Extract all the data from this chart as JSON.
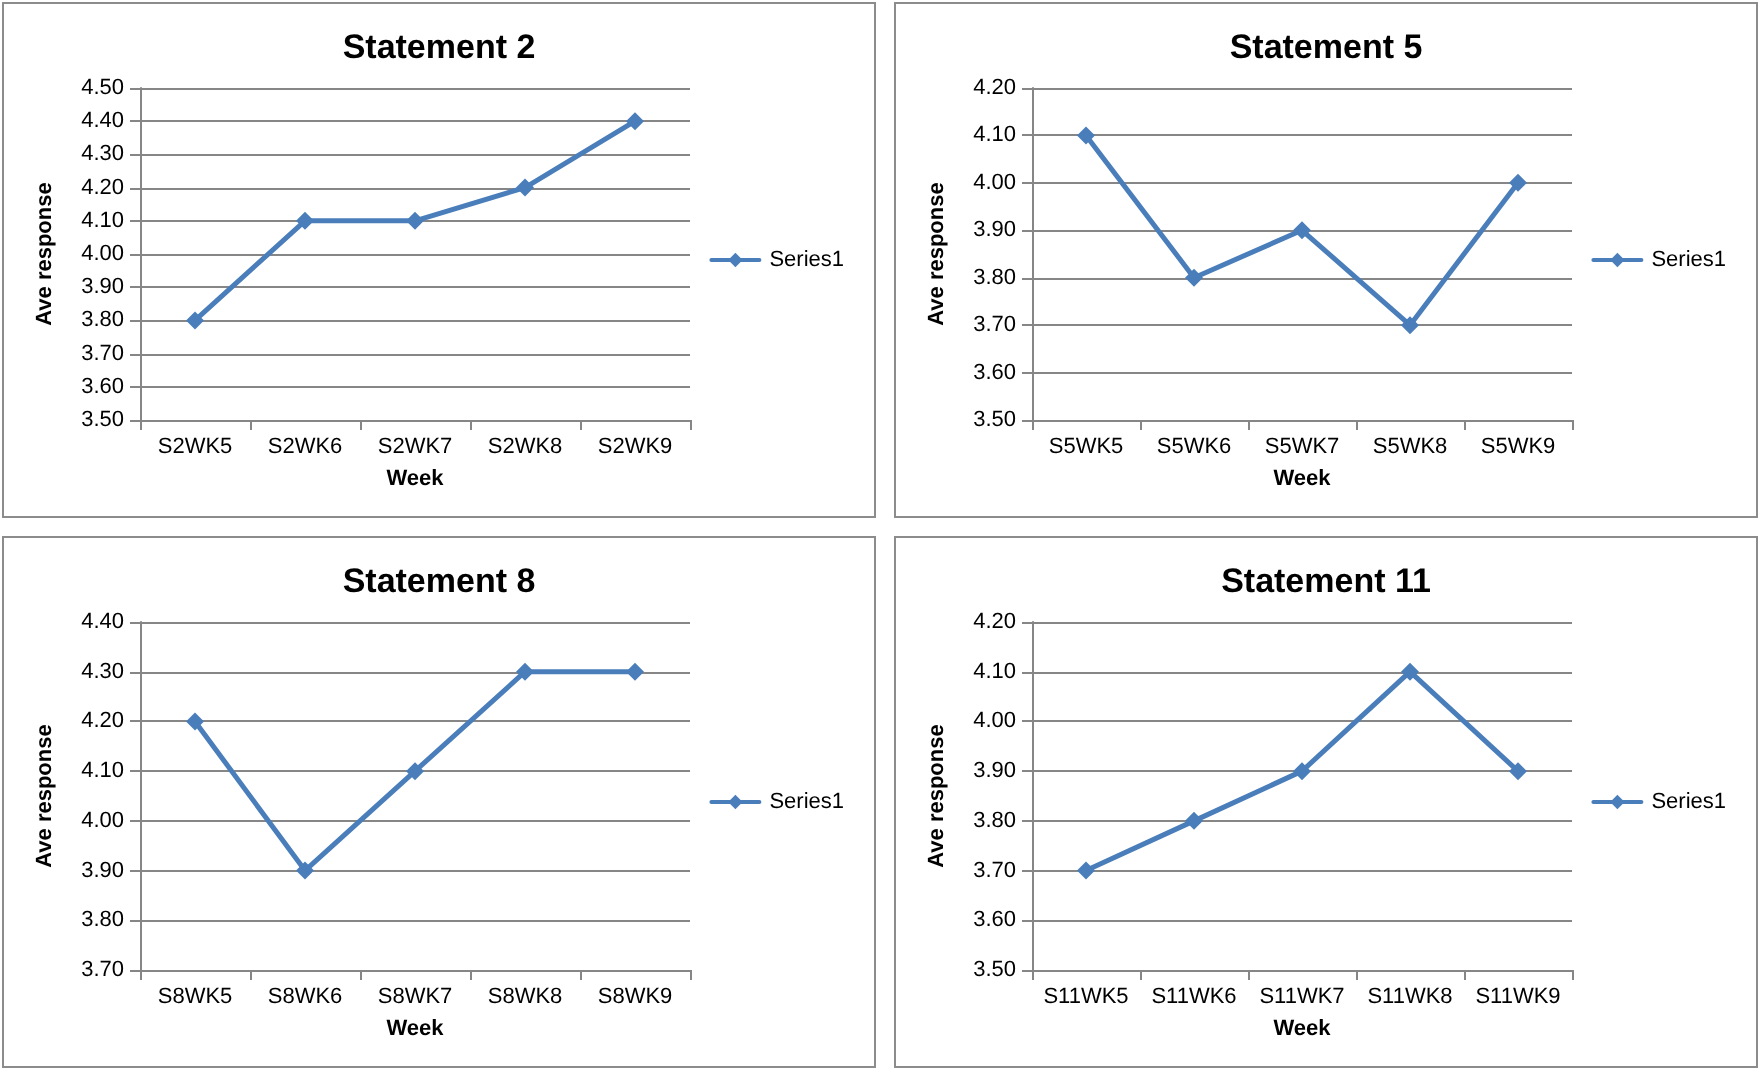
{
  "chart_data": [
    {
      "type": "line",
      "title": "Statement 2",
      "xlabel": "Week",
      "ylabel": "Ave response",
      "categories": [
        "S2WK5",
        "S2WK6",
        "S2WK7",
        "S2WK8",
        "S2WK9"
      ],
      "series": [
        {
          "name": "Series1",
          "color": "#4a7ebb",
          "values": [
            3.8,
            4.1,
            4.1,
            4.2,
            4.4
          ]
        }
      ],
      "ylim": [
        3.5,
        4.5
      ],
      "yticks": [
        {
          "value": 3.5,
          "label": "3.50"
        },
        {
          "value": 3.6,
          "label": "3.60"
        },
        {
          "value": 3.7,
          "label": "3.70"
        },
        {
          "value": 3.8,
          "label": "3.80"
        },
        {
          "value": 3.9,
          "label": "3.90"
        },
        {
          "value": 4.0,
          "label": "4.00"
        },
        {
          "value": 4.1,
          "label": "4.10"
        },
        {
          "value": 4.2,
          "label": "4.20"
        },
        {
          "value": 4.3,
          "label": "4.30"
        },
        {
          "value": 4.4,
          "label": "4.40"
        },
        {
          "value": 4.5,
          "label": "4.50"
        }
      ],
      "grid": "y",
      "legend": "right",
      "marker": "diamond"
    },
    {
      "type": "line",
      "title": "Statement 5",
      "xlabel": "Week",
      "ylabel": "Ave response",
      "categories": [
        "S5WK5",
        "S5WK6",
        "S5WK7",
        "S5WK8",
        "S5WK9"
      ],
      "series": [
        {
          "name": "Series1",
          "color": "#4a7ebb",
          "values": [
            4.1,
            3.8,
            3.9,
            3.7,
            4.0
          ]
        }
      ],
      "ylim": [
        3.5,
        4.2
      ],
      "yticks": [
        {
          "value": 3.5,
          "label": "3.50"
        },
        {
          "value": 3.6,
          "label": "3.60"
        },
        {
          "value": 3.7,
          "label": "3.70"
        },
        {
          "value": 3.8,
          "label": "3.80"
        },
        {
          "value": 3.9,
          "label": "3.90"
        },
        {
          "value": 4.0,
          "label": "4.00"
        },
        {
          "value": 4.1,
          "label": "4.10"
        },
        {
          "value": 4.2,
          "label": "4.20"
        }
      ],
      "grid": "y",
      "legend": "right",
      "marker": "diamond"
    },
    {
      "type": "line",
      "title": "Statement 8",
      "xlabel": "Week",
      "ylabel": "Ave response",
      "categories": [
        "S8WK5",
        "S8WK6",
        "S8WK7",
        "S8WK8",
        "S8WK9"
      ],
      "series": [
        {
          "name": "Series1",
          "color": "#4a7ebb",
          "values": [
            4.2,
            3.9,
            4.1,
            4.3,
            4.3
          ]
        }
      ],
      "ylim": [
        3.7,
        4.4
      ],
      "yticks": [
        {
          "value": 3.7,
          "label": "3.70"
        },
        {
          "value": 3.8,
          "label": "3.80"
        },
        {
          "value": 3.9,
          "label": "3.90"
        },
        {
          "value": 4.0,
          "label": "4.00"
        },
        {
          "value": 4.1,
          "label": "4.10"
        },
        {
          "value": 4.2,
          "label": "4.20"
        },
        {
          "value": 4.3,
          "label": "4.30"
        },
        {
          "value": 4.4,
          "label": "4.40"
        }
      ],
      "grid": "y",
      "legend": "right",
      "marker": "diamond"
    },
    {
      "type": "line",
      "title": "Statement 11",
      "xlabel": "Week",
      "ylabel": "Ave response",
      "categories": [
        "S11WK5",
        "S11WK6",
        "S11WK7",
        "S11WK8",
        "S11WK9"
      ],
      "series": [
        {
          "name": "Series1",
          "color": "#4a7ebb",
          "values": [
            3.7,
            3.8,
            3.9,
            4.1,
            3.9
          ]
        }
      ],
      "ylim": [
        3.5,
        4.2
      ],
      "yticks": [
        {
          "value": 3.5,
          "label": "3.50"
        },
        {
          "value": 3.6,
          "label": "3.60"
        },
        {
          "value": 3.7,
          "label": "3.70"
        },
        {
          "value": 3.8,
          "label": "3.80"
        },
        {
          "value": 3.9,
          "label": "3.90"
        },
        {
          "value": 4.0,
          "label": "4.00"
        },
        {
          "value": 4.1,
          "label": "4.10"
        },
        {
          "value": 4.2,
          "label": "4.20"
        }
      ],
      "grid": "y",
      "legend": "right",
      "marker": "diamond"
    }
  ]
}
